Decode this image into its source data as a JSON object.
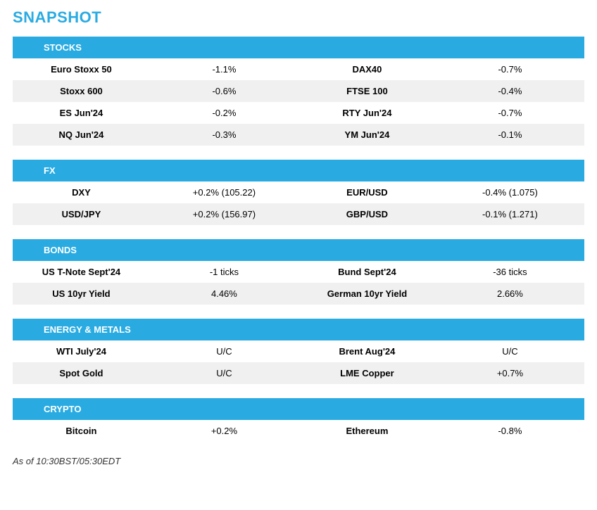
{
  "title": "SNAPSHOT",
  "colors": {
    "accent": "#29abe2",
    "row_alt_bg": "#f0f0f0",
    "background": "#ffffff",
    "text": "#000000"
  },
  "typography": {
    "title_fontsize": 22,
    "header_fontsize": 13,
    "cell_fontsize": 13,
    "footnote_fontsize": 13
  },
  "sections": [
    {
      "header": "STOCKS",
      "rows": [
        {
          "left_name": "Euro Stoxx 50",
          "left_val": "-1.1%",
          "right_name": "DAX40",
          "right_val": "-0.7%",
          "alt": false
        },
        {
          "left_name": "Stoxx 600",
          "left_val": "-0.6%",
          "right_name": "FTSE 100",
          "right_val": "-0.4%",
          "alt": true
        },
        {
          "left_name": "ES Jun'24",
          "left_val": "-0.2%",
          "right_name": "RTY Jun'24",
          "right_val": "-0.7%",
          "alt": false
        },
        {
          "left_name": "NQ Jun'24",
          "left_val": "-0.3%",
          "right_name": "YM Jun'24",
          "right_val": "-0.1%",
          "alt": true
        }
      ]
    },
    {
      "header": "FX",
      "rows": [
        {
          "left_name": "DXY",
          "left_val": "+0.2% (105.22)",
          "right_name": "EUR/USD",
          "right_val": "-0.4% (1.075)",
          "alt": false
        },
        {
          "left_name": "USD/JPY",
          "left_val": "+0.2% (156.97)",
          "right_name": "GBP/USD",
          "right_val": "-0.1% (1.271)",
          "alt": true
        }
      ]
    },
    {
      "header": "BONDS",
      "rows": [
        {
          "left_name": "US T-Note Sept'24",
          "left_val": "-1 ticks",
          "right_name": "Bund Sept'24",
          "right_val": "-36 ticks",
          "alt": false
        },
        {
          "left_name": "US 10yr Yield",
          "left_val": "4.46%",
          "right_name": "German 10yr Yield",
          "right_val": "2.66%",
          "alt": true
        }
      ]
    },
    {
      "header": "ENERGY & METALS",
      "rows": [
        {
          "left_name": "WTI July'24",
          "left_val": "U/C",
          "right_name": "Brent Aug'24",
          "right_val": "U/C",
          "alt": false
        },
        {
          "left_name": "Spot Gold",
          "left_val": "U/C",
          "right_name": "LME Copper",
          "right_val": "+0.7%",
          "alt": true
        }
      ]
    },
    {
      "header": "CRYPTO",
      "rows": [
        {
          "left_name": "Bitcoin",
          "left_val": "+0.2%",
          "right_name": "Ethereum",
          "right_val": "-0.8%",
          "alt": false
        }
      ]
    }
  ],
  "footnote": "As of 10:30BST/05:30EDT"
}
